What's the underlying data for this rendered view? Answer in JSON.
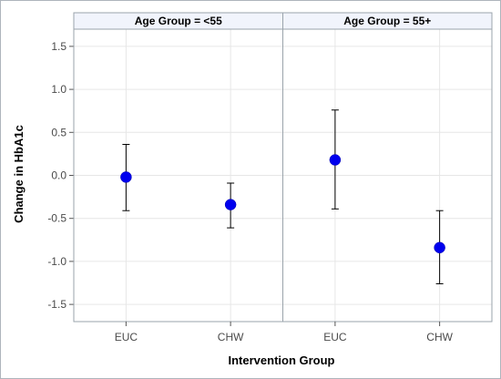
{
  "chart_data": {
    "type": "scatter",
    "subtype": "mean-with-error-bars-paneled",
    "ylabel": "Change in HbA1c",
    "xlabel": "Intervention Group",
    "ylim": [
      -1.7,
      1.7
    ],
    "yticks": [
      1.5,
      1.0,
      0.5,
      0.0,
      -0.5,
      -1.0,
      -1.5
    ],
    "ytick_labels": [
      "1.5",
      "1.0",
      "0.5",
      "0.0",
      "-0.5",
      "-1.0",
      "-1.5"
    ],
    "categories": [
      "EUC",
      "CHW"
    ],
    "grid": true,
    "marker_color": "#0000ee",
    "errorbar_color": "#000000",
    "panels": [
      {
        "title": "Age Group = <55",
        "points": [
          {
            "x": "EUC",
            "y": -0.02,
            "lower": -0.41,
            "upper": 0.36
          },
          {
            "x": "CHW",
            "y": -0.34,
            "lower": -0.61,
            "upper": -0.09
          }
        ]
      },
      {
        "title": "Age Group = 55+",
        "points": [
          {
            "x": "EUC",
            "y": 0.18,
            "lower": -0.39,
            "upper": 0.76
          },
          {
            "x": "CHW",
            "y": -0.84,
            "lower": -1.26,
            "upper": -0.41
          }
        ]
      }
    ]
  }
}
